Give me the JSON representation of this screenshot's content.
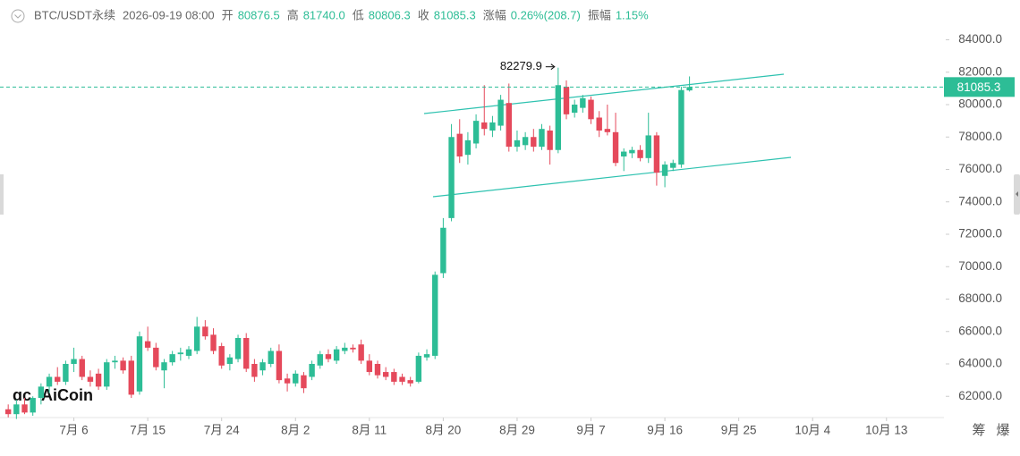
{
  "header": {
    "symbol": "BTC/USDT永续",
    "time": "2026-09-19 08:00",
    "items": [
      {
        "label": "开",
        "value": "80876.5"
      },
      {
        "label": "高",
        "value": "81740.0"
      },
      {
        "label": "低",
        "value": "80806.3"
      },
      {
        "label": "收",
        "value": "81085.3"
      },
      {
        "label": "涨幅",
        "value": "0.26%(208.7)"
      },
      {
        "label": "振幅",
        "value": "1.15%"
      }
    ]
  },
  "watermark": "AiCoin",
  "toolbar": [
    "筹",
    "爆"
  ],
  "chart_data": {
    "type": "candlestick",
    "up_color": "#2dbd96",
    "down_color": "#e5495b",
    "x": [
      "2026-06-28",
      "2026-06-29",
      "2026-06-30",
      "2026-07-01",
      "2026-07-02",
      "2026-07-03",
      "2026-07-04",
      "2026-07-05",
      "2026-07-06",
      "2026-07-07",
      "2026-07-08",
      "2026-07-09",
      "2026-07-10",
      "2026-07-11",
      "2026-07-12",
      "2026-07-13",
      "2026-07-14",
      "2026-07-15",
      "2026-07-16",
      "2026-07-17",
      "2026-07-18",
      "2026-07-19",
      "2026-07-20",
      "2026-07-21",
      "2026-07-22",
      "2026-07-23",
      "2026-07-24",
      "2026-07-25",
      "2026-07-26",
      "2026-07-27",
      "2026-07-28",
      "2026-07-29",
      "2026-07-30",
      "2026-07-31",
      "2026-08-01",
      "2026-08-02",
      "2026-08-03",
      "2026-08-04",
      "2026-08-05",
      "2026-08-06",
      "2026-08-07",
      "2026-08-08",
      "2026-08-09",
      "2026-08-10",
      "2026-08-11",
      "2026-08-12",
      "2026-08-13",
      "2026-08-14",
      "2026-08-15",
      "2026-08-16",
      "2026-08-17",
      "2026-08-18",
      "2026-08-19",
      "2026-08-20",
      "2026-08-21",
      "2026-08-22",
      "2026-08-23",
      "2026-08-24",
      "2026-08-25",
      "2026-08-26",
      "2026-08-27",
      "2026-08-28",
      "2026-08-29",
      "2026-08-30",
      "2026-08-31",
      "2026-09-01",
      "2026-09-02",
      "2026-09-03",
      "2026-09-04",
      "2026-09-05",
      "2026-09-06",
      "2026-09-07",
      "2026-09-08",
      "2026-09-09",
      "2026-09-10",
      "2026-09-11",
      "2026-09-12",
      "2026-09-13",
      "2026-09-14",
      "2026-09-15",
      "2026-09-16",
      "2026-09-17",
      "2026-09-18",
      "2026-09-19"
    ],
    "open": [
      61200,
      60900,
      61500,
      61000,
      61900,
      62600,
      63200,
      62900,
      64000,
      64300,
      63200,
      63400,
      62600,
      64100,
      64200,
      64200,
      62300,
      65400,
      65000,
      63600,
      64100,
      64600,
      64500,
      64800,
      66300,
      65800,
      65100,
      64000,
      64300,
      65600,
      64000,
      63600,
      64000,
      64800,
      63100,
      62800,
      63300,
      63200,
      63900,
      64600,
      64200,
      64800,
      65000,
      65200,
      64200,
      64000,
      63500,
      63500,
      63200,
      63000,
      62900,
      64400,
      64500,
      69600,
      73000,
      78200,
      76900,
      77600,
      78900,
      78400,
      78700,
      80100,
      77400,
      77500,
      78000,
      77400,
      78400,
      77200,
      81100,
      79500,
      79800,
      80300,
      79200,
      78500,
      78300,
      76800,
      77000,
      77200,
      76700,
      78100,
      75600,
      76100,
      76300,
      80876.5
    ],
    "high": [
      61500,
      61800,
      61900,
      62000,
      62800,
      63400,
      63800,
      64200,
      65000,
      64500,
      63600,
      63700,
      64300,
      64500,
      64400,
      64500,
      66000,
      66300,
      65300,
      64300,
      64800,
      65000,
      65100,
      66900,
      66700,
      66200,
      65300,
      64600,
      65800,
      65900,
      64300,
      64300,
      65000,
      65200,
      63400,
      63600,
      63500,
      64200,
      64800,
      64900,
      65100,
      65300,
      65200,
      65500,
      64600,
      64200,
      63800,
      63700,
      63400,
      63200,
      64700,
      64900,
      69700,
      73000,
      78800,
      79100,
      78300,
      79400,
      81200,
      79300,
      80600,
      81300,
      78400,
      78300,
      78500,
      78800,
      78700,
      82279.9,
      81500,
      80300,
      80600,
      80500,
      79600,
      80000,
      79500,
      77300,
      77400,
      77500,
      79500,
      78300,
      76500,
      76600,
      81100,
      81740
    ],
    "low": [
      60700,
      60600,
      60900,
      60800,
      61500,
      62200,
      62700,
      62700,
      63500,
      63000,
      62600,
      62400,
      62400,
      63700,
      63400,
      61900,
      62100,
      64800,
      63600,
      62500,
      63900,
      64200,
      64300,
      64600,
      65500,
      64600,
      63700,
      63600,
      64100,
      63500,
      62900,
      63300,
      63800,
      62800,
      62300,
      62600,
      62200,
      63000,
      63700,
      64100,
      64000,
      64600,
      64700,
      64000,
      63300,
      63100,
      63000,
      62700,
      62700,
      62600,
      62800,
      64200,
      64300,
      69300,
      72800,
      76400,
      76300,
      77300,
      78100,
      78000,
      78400,
      77100,
      77100,
      77200,
      77100,
      77200,
      76300,
      77000,
      79100,
      79200,
      79500,
      78800,
      78000,
      78100,
      76200,
      75900,
      76700,
      76500,
      76400,
      75000,
      74900,
      75900,
      76100,
      80806.3
    ],
    "close": [
      60900,
      61500,
      61000,
      61900,
      62600,
      63200,
      62900,
      64000,
      64300,
      63200,
      62900,
      62600,
      64100,
      64200,
      63600,
      62100,
      65700,
      65000,
      63800,
      64100,
      64600,
      64700,
      64900,
      66300,
      65700,
      64800,
      63900,
      64400,
      65600,
      63700,
      63200,
      64100,
      64800,
      63000,
      62800,
      63400,
      62500,
      64000,
      64600,
      64300,
      64900,
      65000,
      64900,
      64200,
      63500,
      63300,
      63200,
      62900,
      62900,
      62800,
      64500,
      64600,
      69500,
      72400,
      78000,
      76800,
      77800,
      79000,
      78500,
      78900,
      80300,
      77400,
      77800,
      78000,
      77400,
      78500,
      77200,
      81200,
      79400,
      80000,
      80400,
      79100,
      78400,
      78300,
      76400,
      77100,
      77200,
      76700,
      78100,
      75800,
      76300,
      76400,
      80900,
      81085.3
    ],
    "last_price": 81085.3,
    "xlim": [
      "2026-06-27",
      "2026-10-20"
    ],
    "xticks": [
      {
        "value": "2026-07-06",
        "label": "7月 6"
      },
      {
        "value": "2026-07-15",
        "label": "7月 15"
      },
      {
        "value": "2026-07-24",
        "label": "7月 24"
      },
      {
        "value": "2026-08-02",
        "label": "8月 2"
      },
      {
        "value": "2026-08-11",
        "label": "8月 11"
      },
      {
        "value": "2026-08-20",
        "label": "8月 20"
      },
      {
        "value": "2026-08-29",
        "label": "8月 29"
      },
      {
        "value": "2026-09-07",
        "label": "9月 7"
      },
      {
        "value": "2026-09-16",
        "label": "9月 16"
      },
      {
        "value": "2026-09-25",
        "label": "9月 25"
      },
      {
        "value": "2026-10-04",
        "label": "10月 4"
      },
      {
        "value": "2026-10-13",
        "label": "10月 13"
      }
    ],
    "ylim": [
      60800,
      84800
    ],
    "yticks": [
      {
        "value": 62000,
        "label": "62000.0"
      },
      {
        "value": 64000,
        "label": "64000.0"
      },
      {
        "value": 66000,
        "label": "66000.0"
      },
      {
        "value": 68000,
        "label": "68000.0"
      },
      {
        "value": 70000,
        "label": "70000.0"
      },
      {
        "value": 72000,
        "label": "72000.0"
      },
      {
        "value": 74000,
        "label": "74000.0"
      },
      {
        "value": 76000,
        "label": "76000.0"
      },
      {
        "value": 78000,
        "label": "78000.0"
      },
      {
        "value": 80000,
        "label": "80000.0"
      },
      {
        "value": 82000,
        "label": "82000.0"
      },
      {
        "value": 84000,
        "label": "84000.0"
      }
    ],
    "max_index": 67
  }
}
